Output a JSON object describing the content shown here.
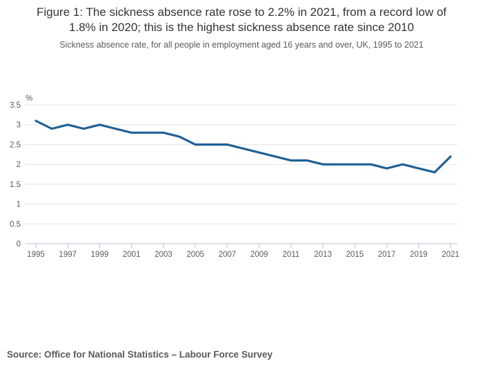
{
  "figure": {
    "title": "Figure 1: The sickness absence rate rose to 2.2% in 2021, from a record low of 1.8% in 2020; this is the highest sickness absence rate since 2010",
    "subtitle": "Sickness absence rate, for all people in employment aged 16 years and over, UK, 1995 to 2021",
    "source": "Source: Office for National Statistics – Labour Force Survey"
  },
  "chart_data": {
    "type": "line",
    "title": "Sickness absence rate, UK, 1995 to 2021",
    "unit_label": "%",
    "x": [
      1995,
      1996,
      1997,
      1998,
      1999,
      2000,
      2001,
      2002,
      2003,
      2004,
      2005,
      2006,
      2007,
      2008,
      2009,
      2010,
      2011,
      2012,
      2013,
      2014,
      2015,
      2016,
      2017,
      2018,
      2019,
      2020,
      2021
    ],
    "values": [
      3.1,
      2.9,
      3.0,
      2.9,
      3.0,
      2.9,
      2.8,
      2.8,
      2.8,
      2.7,
      2.5,
      2.5,
      2.5,
      2.4,
      2.3,
      2.2,
      2.1,
      2.1,
      2.0,
      2.0,
      2.0,
      2.0,
      1.9,
      2.0,
      1.9,
      1.8,
      2.2
    ],
    "xticks": [
      1995,
      1997,
      1999,
      2001,
      2003,
      2005,
      2007,
      2009,
      2011,
      2013,
      2015,
      2017,
      2019,
      2021
    ],
    "ylim": [
      0,
      3.5
    ],
    "ytick_step": 0.5,
    "grid": true,
    "legend": "none",
    "colors": {
      "line": "#206095",
      "grid": "#e3e3e3",
      "axis": "#c3cdde",
      "tick_label": "#57595b",
      "unit_label": "#57595b"
    }
  }
}
